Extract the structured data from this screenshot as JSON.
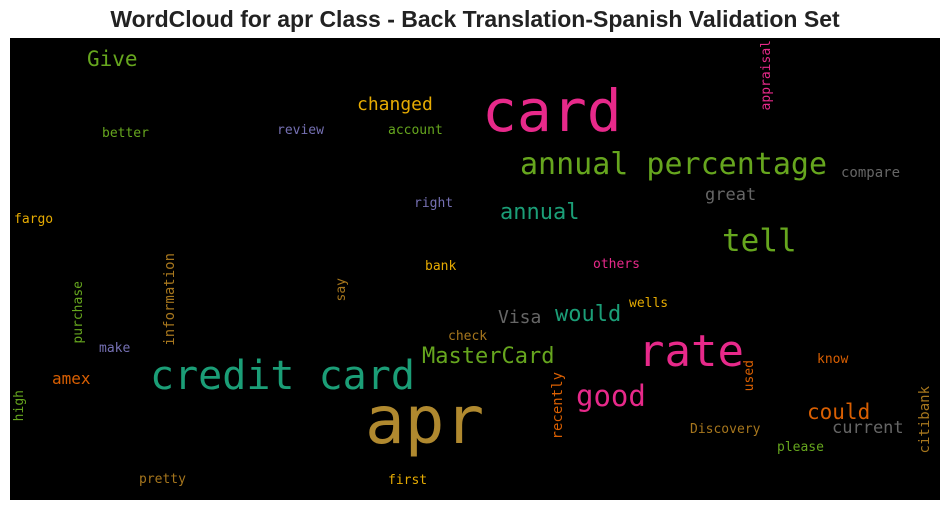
{
  "chart_data": {
    "type": "wordcloud",
    "title": "WordCloud for apr Class - Back Translation-Spanish Validation Set",
    "background": "#000000",
    "words": [
      {
        "text": "apr",
        "color": "#b0892f"
      },
      {
        "text": "card",
        "color": "#e7298a"
      },
      {
        "text": "credit card",
        "color": "#1b9e77"
      },
      {
        "text": "rate",
        "color": "#e7298a"
      },
      {
        "text": "annual percentage",
        "color": "#66a61e"
      },
      {
        "text": "tell",
        "color": "#66a61e"
      },
      {
        "text": "good",
        "color": "#e7298a"
      },
      {
        "text": "MasterCard",
        "color": "#66a61e"
      },
      {
        "text": "annual",
        "color": "#1b9e77"
      },
      {
        "text": "would",
        "color": "#1b9e77"
      },
      {
        "text": "Visa",
        "color": "#666666"
      },
      {
        "text": "could",
        "color": "#d95f02"
      },
      {
        "text": "Give",
        "color": "#66a61e"
      },
      {
        "text": "changed",
        "color": "#e6ab02"
      },
      {
        "text": "great",
        "color": "#666666"
      },
      {
        "text": "current",
        "color": "#666666"
      },
      {
        "text": "amex",
        "color": "#d95f02"
      },
      {
        "text": "compare",
        "color": "#666666"
      },
      {
        "text": "review",
        "color": "#7570b3"
      },
      {
        "text": "account",
        "color": "#66a61e"
      },
      {
        "text": "better",
        "color": "#66a61e"
      },
      {
        "text": "right",
        "color": "#7570b3"
      },
      {
        "text": "fargo",
        "color": "#e6ab02"
      },
      {
        "text": "bank",
        "color": "#e6ab02"
      },
      {
        "text": "others",
        "color": "#e7298a"
      },
      {
        "text": "wells",
        "color": "#e6ab02"
      },
      {
        "text": "check",
        "color": "#a6761d"
      },
      {
        "text": "make",
        "color": "#7570b3"
      },
      {
        "text": "know",
        "color": "#d95f02"
      },
      {
        "text": "Discovery",
        "color": "#a6761d"
      },
      {
        "text": "please",
        "color": "#66a61e"
      },
      {
        "text": "pretty",
        "color": "#a6761d"
      },
      {
        "text": "first",
        "color": "#e6ab02"
      },
      {
        "text": "information",
        "color": "#a6761d"
      },
      {
        "text": "purchase",
        "color": "#66a61e"
      },
      {
        "text": "say",
        "color": "#a6761d"
      },
      {
        "text": "high",
        "color": "#66a61e"
      },
      {
        "text": "recently",
        "color": "#d95f02"
      },
      {
        "text": "used",
        "color": "#d95f02"
      },
      {
        "text": "citibank",
        "color": "#a6761d"
      },
      {
        "text": "appraisal",
        "color": "#e7298a"
      }
    ]
  }
}
